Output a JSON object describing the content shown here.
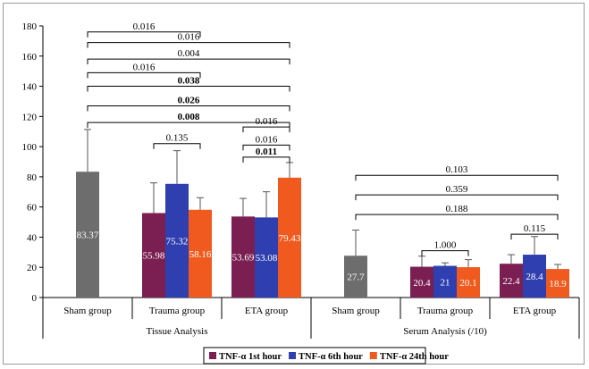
{
  "chart_data": {
    "type": "bar",
    "ylim": [
      0,
      180
    ],
    "yticks": [
      0,
      20,
      40,
      60,
      80,
      100,
      120,
      140,
      160,
      180
    ],
    "grid": false,
    "legend_position": "bottom-right",
    "groups": [
      {
        "label": "Tissue Analysis",
        "categories": [
          {
            "label": "Sham group",
            "bars": [
              {
                "series": "sham",
                "value": 83.37,
                "label": "83.37",
                "err": 28
              }
            ]
          },
          {
            "label": "Trauma group",
            "bars": [
              {
                "series": "s1",
                "value": 55.98,
                "label": "55.98",
                "err": 20
              },
              {
                "series": "s6",
                "value": 75.32,
                "label": "75.32",
                "err": 22
              },
              {
                "series": "s24",
                "value": 58.16,
                "label": "58.16",
                "err": 8
              }
            ]
          },
          {
            "label": "ETA group",
            "bars": [
              {
                "series": "s1",
                "value": 53.69,
                "label": "53.69",
                "err": 12
              },
              {
                "series": "s6",
                "value": 53.08,
                "label": "53.08",
                "err": 17
              },
              {
                "series": "s24",
                "value": 79.43,
                "label": "79.43",
                "err": 10
              }
            ]
          }
        ]
      },
      {
        "label": "Serum Analysis (/10)",
        "categories": [
          {
            "label": "Sham group",
            "bars": [
              {
                "series": "sham",
                "value": 27.7,
                "label": "27.7",
                "err": 17
              }
            ]
          },
          {
            "label": "Trauma group",
            "bars": [
              {
                "series": "s1",
                "value": 20.4,
                "label": "20.4",
                "err": 7
              },
              {
                "series": "s6",
                "value": 21,
                "label": "21",
                "err": 2
              },
              {
                "series": "s24",
                "value": 20.1,
                "label": "20.1",
                "err": 5
              }
            ]
          },
          {
            "label": "ETA group",
            "bars": [
              {
                "series": "s1",
                "value": 22.4,
                "label": "22.4",
                "err": 6
              },
              {
                "series": "s6",
                "value": 28.4,
                "label": "28.4",
                "err": 12
              },
              {
                "series": "s24",
                "value": 18.9,
                "label": "18.9",
                "err": 3
              }
            ]
          }
        ]
      }
    ],
    "series": [
      {
        "key": "sham",
        "color": "#6d6d6d"
      },
      {
        "key": "s1",
        "name": "TNF-α 1st hour",
        "color": "#7b1f52"
      },
      {
        "key": "s6",
        "name": "TNF-α 6th hour",
        "color": "#2f3fb0"
      },
      {
        "key": "s24",
        "name": "TNF-α 24th hour",
        "color": "#f05a1e"
      }
    ],
    "annotations": [
      {
        "text": "0.016",
        "bold": false,
        "from": [
          0,
          0
        ],
        "to": [
          0,
          1
        ],
        "y": 176
      },
      {
        "text": "0.016",
        "bold": false,
        "from": [
          0,
          0
        ],
        "to": [
          0,
          2
        ],
        "y": 169
      },
      {
        "text": "0.004",
        "bold": false,
        "from": [
          0,
          0
        ],
        "to": [
          0,
          2
        ],
        "y": 158
      },
      {
        "text": "0.016",
        "bold": false,
        "from": [
          0,
          0
        ],
        "to": [
          0,
          1
        ],
        "y": 149
      },
      {
        "text": "0.038",
        "bold": true,
        "from": [
          0,
          0
        ],
        "to": [
          0,
          2
        ],
        "y": 140
      },
      {
        "text": "0.026",
        "bold": true,
        "from": [
          0,
          0
        ],
        "to": [
          0,
          2
        ],
        "y": 127
      },
      {
        "text": "0.008",
        "bold": true,
        "from": [
          0,
          0
        ],
        "to": [
          0,
          2
        ],
        "y": 116
      },
      {
        "text": "0.135",
        "bold": false,
        "from": [
          0,
          1
        ],
        "to": [
          0,
          1
        ],
        "y": 102
      },
      {
        "text": "0.016",
        "bold": false,
        "from": [
          0,
          2
        ],
        "to": [
          0,
          2
        ],
        "y": 113
      },
      {
        "text": "0.016",
        "bold": false,
        "from": [
          0,
          2
        ],
        "to": [
          0,
          2
        ],
        "y": 101
      },
      {
        "text": "0.011",
        "bold": true,
        "from": [
          0,
          2
        ],
        "to": [
          0,
          2
        ],
        "y": 93
      },
      {
        "text": "0.103",
        "bold": false,
        "from": [
          1,
          0
        ],
        "to": [
          1,
          2
        ],
        "y": 81
      },
      {
        "text": "0.359",
        "bold": false,
        "from": [
          1,
          0
        ],
        "to": [
          1,
          2
        ],
        "y": 68
      },
      {
        "text": "0.188",
        "bold": false,
        "from": [
          1,
          0
        ],
        "to": [
          1,
          2
        ],
        "y": 55
      },
      {
        "text": "1.000",
        "bold": false,
        "from": [
          1,
          1
        ],
        "to": [
          1,
          1
        ],
        "y": 31
      },
      {
        "text": "0.115",
        "bold": false,
        "from": [
          1,
          2
        ],
        "to": [
          1,
          2
        ],
        "y": 42
      }
    ]
  }
}
